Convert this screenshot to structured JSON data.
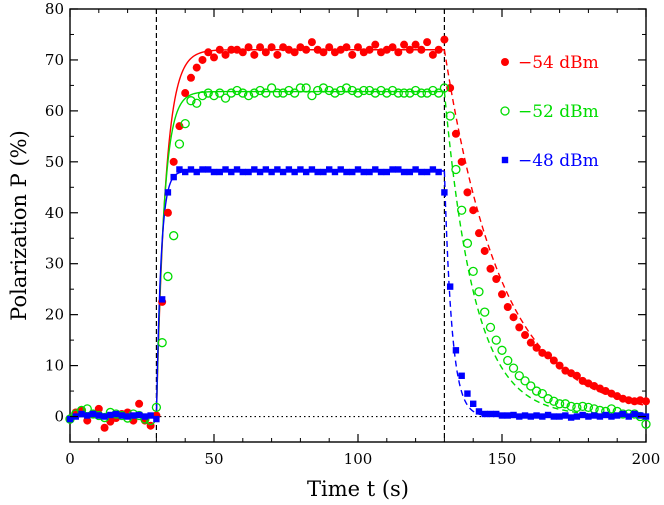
{
  "chart_data": {
    "type": "scatter",
    "title": "",
    "xlabel": "Time t (s)",
    "ylabel": "Polarization P (%)",
    "xlim": [
      0,
      200
    ],
    "ylim": [
      -5,
      80
    ],
    "xticks": [
      0,
      50,
      100,
      150,
      200
    ],
    "yticks": [
      0,
      10,
      20,
      30,
      40,
      50,
      60,
      70,
      80
    ],
    "grid": false,
    "legend_position": "top-right",
    "reference_lines": {
      "vertical_dashed_x": [
        30,
        130
      ],
      "horizontal_dotted_y": 0
    },
    "series": [
      {
        "name": "−54 dBm",
        "color": "#ff0000",
        "marker": "filled-circle",
        "fit": "dashed-after-off",
        "x": [
          0,
          2,
          4,
          6,
          8,
          10,
          12,
          14,
          16,
          18,
          20,
          22,
          24,
          26,
          28,
          30,
          32,
          34,
          36,
          38,
          40,
          42,
          44,
          46,
          48,
          50,
          52,
          54,
          56,
          58,
          60,
          62,
          64,
          66,
          68,
          70,
          72,
          74,
          76,
          78,
          80,
          82,
          84,
          86,
          88,
          90,
          92,
          94,
          96,
          98,
          100,
          102,
          104,
          106,
          108,
          110,
          112,
          114,
          116,
          118,
          120,
          122,
          124,
          126,
          128,
          130,
          132,
          134,
          136,
          138,
          140,
          142,
          144,
          146,
          148,
          150,
          152,
          154,
          156,
          158,
          160,
          162,
          164,
          166,
          168,
          170,
          172,
          174,
          176,
          178,
          180,
          182,
          184,
          186,
          188,
          190,
          192,
          194,
          196,
          198,
          200
        ],
        "y": [
          -0.5,
          0.8,
          1.2,
          -0.8,
          0.5,
          1.5,
          -2.2,
          -1.0,
          -0.3,
          0.5,
          0.8,
          -0.8,
          2.5,
          -0.8,
          -1.8,
          0.2,
          22.5,
          40.0,
          50.0,
          57.0,
          63.5,
          66.5,
          68.5,
          70.0,
          71.5,
          70.5,
          72.0,
          71.0,
          72.0,
          72.0,
          71.5,
          72.5,
          71.0,
          72.5,
          71.5,
          72.5,
          71.0,
          72.5,
          72.0,
          71.5,
          72.5,
          72.0,
          73.5,
          72.0,
          71.5,
          72.5,
          71.5,
          72.0,
          72.5,
          71.0,
          72.5,
          71.5,
          72.0,
          73.0,
          71.5,
          72.0,
          72.5,
          71.5,
          73.0,
          72.0,
          73.0,
          72.0,
          73.5,
          71.0,
          72.0,
          74.0,
          64.5,
          55.5,
          50.0,
          44.0,
          40.5,
          36.0,
          32.5,
          29.0,
          27.0,
          24.0,
          21.5,
          19.5,
          17.5,
          16.0,
          14.5,
          13.5,
          12.5,
          12.0,
          11.0,
          10.0,
          9.0,
          8.5,
          8.0,
          7.0,
          6.5,
          6.0,
          5.5,
          5.0,
          4.5,
          4.0,
          3.5,
          3.2,
          3.0,
          3.2,
          3.0
        ]
      },
      {
        "name": "−52 dBm",
        "color": "#00dd00",
        "marker": "open-circle",
        "fit": "dashed-after-off",
        "x": [
          0,
          2,
          4,
          6,
          8,
          10,
          12,
          14,
          16,
          18,
          20,
          22,
          24,
          26,
          28,
          30,
          32,
          34,
          36,
          38,
          40,
          42,
          44,
          46,
          48,
          50,
          52,
          54,
          56,
          58,
          60,
          62,
          64,
          66,
          68,
          70,
          72,
          74,
          76,
          78,
          80,
          82,
          84,
          86,
          88,
          90,
          92,
          94,
          96,
          98,
          100,
          102,
          104,
          106,
          108,
          110,
          112,
          114,
          116,
          118,
          120,
          122,
          124,
          126,
          128,
          130,
          132,
          134,
          136,
          138,
          140,
          142,
          144,
          146,
          148,
          150,
          152,
          154,
          156,
          158,
          160,
          162,
          164,
          166,
          168,
          170,
          172,
          174,
          176,
          178,
          180,
          182,
          184,
          186,
          188,
          190,
          192,
          194,
          196,
          198,
          200
        ],
        "y": [
          -0.5,
          0.5,
          1.2,
          1.5,
          0.5,
          0.2,
          -0.2,
          0.8,
          0.5,
          0.2,
          -0.3,
          0.5,
          0.2,
          -0.5,
          -0.8,
          1.8,
          14.5,
          27.5,
          35.5,
          53.5,
          57.5,
          62.0,
          61.5,
          63.0,
          63.5,
          63.0,
          63.5,
          62.5,
          63.5,
          64.0,
          63.5,
          63.0,
          63.5,
          64.0,
          63.5,
          64.5,
          63.5,
          63.5,
          64.0,
          63.5,
          64.5,
          64.5,
          63.0,
          64.0,
          64.5,
          64.0,
          63.5,
          64.0,
          64.5,
          64.0,
          63.5,
          64.0,
          64.0,
          63.5,
          64.0,
          63.5,
          64.0,
          63.5,
          63.5,
          63.5,
          64.0,
          63.5,
          63.5,
          64.0,
          63.5,
          64.5,
          59.0,
          48.5,
          40.5,
          34.0,
          28.5,
          24.5,
          20.5,
          17.5,
          15.0,
          13.0,
          11.0,
          9.5,
          8.0,
          7.0,
          6.0,
          5.0,
          4.5,
          3.5,
          3.0,
          2.5,
          2.5,
          2.0,
          1.8,
          2.0,
          1.8,
          1.5,
          1.2,
          1.0,
          1.5,
          1.0,
          0.5,
          0.5,
          0.5,
          0.0,
          -1.5
        ]
      },
      {
        "name": "−48 dBm",
        "color": "#0000ff",
        "marker": "filled-square",
        "fit": "dashed-after-off",
        "x": [
          0,
          2,
          4,
          6,
          8,
          10,
          12,
          14,
          16,
          18,
          20,
          22,
          24,
          26,
          28,
          30,
          32,
          34,
          36,
          38,
          40,
          42,
          44,
          46,
          48,
          50,
          52,
          54,
          56,
          58,
          60,
          62,
          64,
          66,
          68,
          70,
          72,
          74,
          76,
          78,
          80,
          82,
          84,
          86,
          88,
          90,
          92,
          94,
          96,
          98,
          100,
          102,
          104,
          106,
          108,
          110,
          112,
          114,
          116,
          118,
          120,
          122,
          124,
          126,
          128,
          130,
          132,
          134,
          136,
          138,
          140,
          142,
          144,
          146,
          148,
          150,
          152,
          154,
          156,
          158,
          160,
          162,
          164,
          166,
          168,
          170,
          172,
          174,
          176,
          178,
          180,
          182,
          184,
          186,
          188,
          190,
          192,
          194,
          196,
          198,
          200
        ],
        "y": [
          -0.5,
          0.0,
          0.5,
          0.2,
          0.5,
          0.2,
          0.0,
          0.3,
          0.5,
          0.2,
          0.0,
          0.2,
          0.3,
          0.0,
          0.2,
          -0.5,
          23.0,
          44.0,
          47.0,
          48.5,
          48.0,
          48.5,
          48.0,
          48.5,
          48.5,
          48.0,
          48.0,
          48.5,
          48.0,
          48.5,
          48.0,
          48.0,
          48.5,
          48.0,
          48.5,
          48.0,
          48.5,
          48.0,
          48.5,
          48.0,
          48.5,
          48.0,
          48.5,
          48.0,
          48.0,
          48.5,
          48.0,
          48.5,
          48.0,
          48.0,
          48.5,
          48.0,
          48.0,
          48.5,
          48.0,
          48.0,
          48.5,
          48.5,
          48.0,
          48.0,
          48.5,
          48.0,
          48.0,
          48.5,
          48.0,
          44.0,
          25.5,
          13.0,
          8.0,
          4.5,
          2.5,
          1.0,
          0.5,
          0.5,
          0.5,
          0.2,
          0.2,
          0.3,
          0.0,
          0.2,
          0.0,
          0.2,
          0.0,
          0.3,
          0.0,
          0.0,
          0.2,
          -0.2,
          0.0,
          0.3,
          0.0,
          0.2,
          0.0,
          0.3,
          0.0,
          0.2,
          0.5,
          0.0,
          0.5,
          0.2,
          0.0
        ]
      }
    ],
    "fits": [
      {
        "series": "−54 dBm",
        "plateau": 72,
        "tau_on": 3.2,
        "tau_off": 20,
        "color": "#ff0000"
      },
      {
        "series": "−52 dBm",
        "plateau": 63.8,
        "tau_on": 2.6,
        "tau_off": 10.5,
        "color": "#00dd00"
      },
      {
        "series": "−48 dBm",
        "plateau": 48.2,
        "tau_on": 1.6,
        "tau_off": 2.6,
        "color": "#0000ff"
      }
    ]
  }
}
